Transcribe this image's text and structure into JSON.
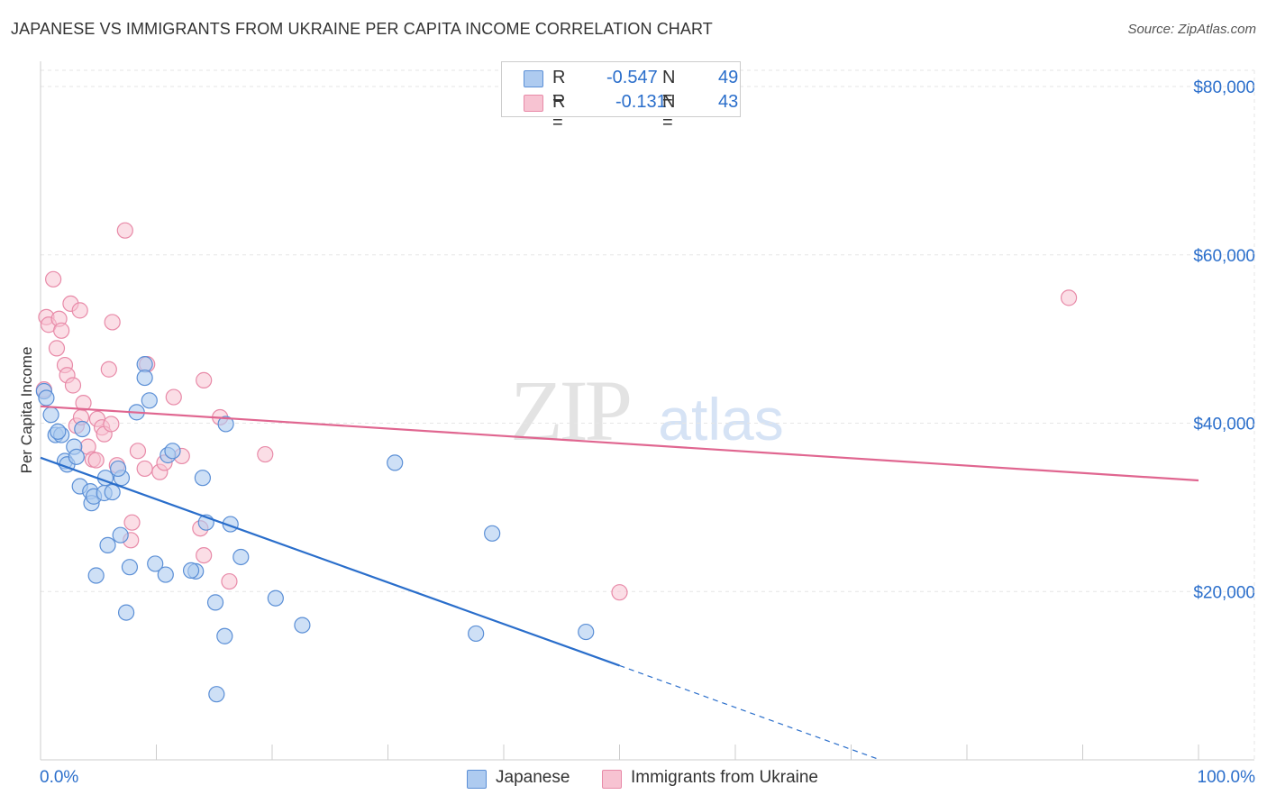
{
  "header": {
    "title": "JAPANESE VS IMMIGRANTS FROM UKRAINE PER CAPITA INCOME CORRELATION CHART",
    "source": "Source: ZipAtlas.com"
  },
  "legend": {
    "r_label": "R =",
    "n_label": "N =",
    "rows": [
      {
        "r": "-0.547",
        "n": "49"
      },
      {
        "r": "-0.131",
        "n": "43"
      }
    ]
  },
  "colors": {
    "japanese_fill": "#aecbf0",
    "japanese_stroke": "#5b8fd6",
    "japanese_line": "#2a6ecb",
    "ukraine_fill": "#f7c3d2",
    "ukraine_stroke": "#e88aa8",
    "ukraine_line": "#e06690",
    "tick_text": "#2a6ecb",
    "grid": "#e6e6e6"
  },
  "watermark": {
    "zip": "ZIP",
    "atlas": "atlas"
  },
  "chart_data": {
    "type": "scatter",
    "title": "JAPANESE VS IMMIGRANTS FROM UKRAINE PER CAPITA INCOME CORRELATION CHART",
    "xlabel": "",
    "ylabel": "Per Capita Income",
    "xlim": [
      0,
      100
    ],
    "ylim": [
      0,
      82000
    ],
    "x_tick_labels": [
      "0.0%",
      "100.0%"
    ],
    "y_ticks": [
      20000,
      40000,
      60000,
      80000
    ],
    "y_tick_labels": [
      "$20,000",
      "$40,000",
      "$60,000",
      "$80,000"
    ],
    "grid": true,
    "legend_position": "top-center",
    "series": [
      {
        "name": "Japanese",
        "r": -0.547,
        "n": 49,
        "points": [
          [
            0.3,
            43800
          ],
          [
            0.5,
            43000
          ],
          [
            0.9,
            41000
          ],
          [
            1.3,
            38600
          ],
          [
            1.8,
            38600
          ],
          [
            2.1,
            35500
          ],
          [
            2.3,
            35100
          ],
          [
            2.9,
            37200
          ],
          [
            3.1,
            36000
          ],
          [
            3.6,
            39300
          ],
          [
            3.4,
            32500
          ],
          [
            4.3,
            31900
          ],
          [
            4.4,
            30500
          ],
          [
            4.6,
            31300
          ],
          [
            5.5,
            31700
          ],
          [
            6.2,
            31800
          ],
          [
            5.6,
            33500
          ],
          [
            7.0,
            33500
          ],
          [
            6.7,
            34600
          ],
          [
            5.8,
            25500
          ],
          [
            6.9,
            26700
          ],
          [
            4.8,
            21900
          ],
          [
            7.7,
            22900
          ],
          [
            9.0,
            47000
          ],
          [
            9.0,
            45400
          ],
          [
            8.3,
            41300
          ],
          [
            9.4,
            42700
          ],
          [
            11.0,
            36200
          ],
          [
            11.4,
            36700
          ],
          [
            14.0,
            33500
          ],
          [
            14.3,
            28200
          ],
          [
            16.4,
            28000
          ],
          [
            13.4,
            22400
          ],
          [
            13.0,
            22500
          ],
          [
            16.0,
            39900
          ],
          [
            15.1,
            18700
          ],
          [
            17.3,
            24100
          ],
          [
            9.9,
            23300
          ],
          [
            7.4,
            17500
          ],
          [
            15.9,
            14700
          ],
          [
            15.2,
            7800
          ],
          [
            20.3,
            19200
          ],
          [
            22.6,
            16000
          ],
          [
            30.6,
            35300
          ],
          [
            37.6,
            15000
          ],
          [
            39.0,
            26900
          ],
          [
            47.1,
            15200
          ],
          [
            10.8,
            22000
          ],
          [
            1.5,
            39000
          ]
        ],
        "trend": {
          "x0": 0,
          "y0": 35900,
          "x1_solid": 50,
          "y1_solid": 11200,
          "x1_dashed": 72.5,
          "y1_dashed": 0
        }
      },
      {
        "name": "Immigrants from Ukraine",
        "r": -0.131,
        "n": 43,
        "points": [
          [
            0.3,
            44000
          ],
          [
            0.5,
            52600
          ],
          [
            0.7,
            51700
          ],
          [
            1.1,
            57100
          ],
          [
            1.6,
            52400
          ],
          [
            1.8,
            51000
          ],
          [
            1.4,
            48900
          ],
          [
            2.1,
            46900
          ],
          [
            2.3,
            45700
          ],
          [
            2.6,
            54200
          ],
          [
            2.8,
            44500
          ],
          [
            3.1,
            39700
          ],
          [
            3.4,
            53400
          ],
          [
            3.7,
            42400
          ],
          [
            3.5,
            40700
          ],
          [
            4.1,
            37200
          ],
          [
            4.5,
            35700
          ],
          [
            4.8,
            35600
          ],
          [
            4.9,
            40500
          ],
          [
            5.3,
            39500
          ],
          [
            5.5,
            38700
          ],
          [
            5.9,
            46400
          ],
          [
            6.2,
            52000
          ],
          [
            6.1,
            39900
          ],
          [
            6.6,
            35000
          ],
          [
            7.3,
            62900
          ],
          [
            7.9,
            28200
          ],
          [
            7.8,
            26100
          ],
          [
            8.4,
            36700
          ],
          [
            9.0,
            34600
          ],
          [
            9.2,
            47000
          ],
          [
            10.3,
            34200
          ],
          [
            10.7,
            35300
          ],
          [
            11.5,
            43100
          ],
          [
            13.8,
            27500
          ],
          [
            14.1,
            24300
          ],
          [
            14.1,
            45100
          ],
          [
            15.5,
            40700
          ],
          [
            16.3,
            21200
          ],
          [
            19.4,
            36300
          ],
          [
            12.2,
            36100
          ],
          [
            50.0,
            19900
          ],
          [
            88.8,
            54900
          ]
        ],
        "trend": {
          "x0": 0,
          "y0": 42000,
          "x1": 100,
          "y1": 33200
        }
      }
    ]
  },
  "bottom_legend": [
    {
      "label": "Japanese"
    },
    {
      "label": "Immigrants from Ukraine"
    }
  ]
}
